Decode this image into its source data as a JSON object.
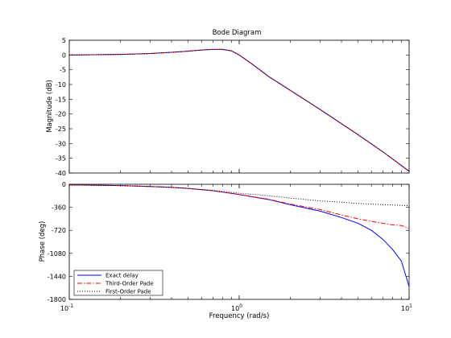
{
  "chart_data": [
    {
      "type": "line",
      "title": "Bode Diagram",
      "xlabel": "",
      "ylabel": "Magnitude (dB)",
      "xscale": "log",
      "xlim": [
        0.1,
        10
      ],
      "ylim": [
        -40,
        5
      ],
      "yticks": [
        5,
        0,
        -5,
        -10,
        -15,
        -20,
        -25,
        -30,
        -35,
        -40
      ],
      "grid": false,
      "series": [
        {
          "name": "Exact delay",
          "color": "#0000ff",
          "dash": "solid",
          "x": [
            0.1,
            0.2,
            0.3,
            0.4,
            0.5,
            0.6,
            0.7,
            0.8,
            0.9,
            1.0,
            1.2,
            1.5,
            2,
            3,
            5,
            7,
            10
          ],
          "y": [
            0.0,
            0.2,
            0.5,
            0.9,
            1.3,
            1.7,
            1.9,
            1.9,
            1.4,
            0.0,
            -3.2,
            -7.4,
            -12.0,
            -18.5,
            -27.0,
            -32.8,
            -39.4
          ]
        },
        {
          "name": "Third-Order Pade",
          "color": "#ff0000",
          "dash": "dashdot",
          "x": [
            0.1,
            0.2,
            0.3,
            0.4,
            0.5,
            0.6,
            0.7,
            0.8,
            0.9,
            1.0,
            1.2,
            1.5,
            2,
            3,
            5,
            7,
            10
          ],
          "y": [
            0.0,
            0.2,
            0.5,
            0.9,
            1.3,
            1.7,
            1.9,
            1.9,
            1.4,
            0.0,
            -3.2,
            -7.4,
            -12.0,
            -18.5,
            -27.0,
            -32.8,
            -39.4
          ]
        },
        {
          "name": "First-Order Pade",
          "color": "#000000",
          "dash": "dotted",
          "x": [
            0.1,
            0.2,
            0.3,
            0.4,
            0.5,
            0.6,
            0.7,
            0.8,
            0.9,
            1.0,
            1.2,
            1.5,
            2,
            3,
            5,
            7,
            10
          ],
          "y": [
            0.0,
            0.2,
            0.5,
            0.9,
            1.3,
            1.7,
            1.9,
            1.9,
            1.4,
            0.0,
            -3.2,
            -7.4,
            -12.0,
            -18.5,
            -27.0,
            -32.8,
            -39.4
          ]
        }
      ]
    },
    {
      "type": "line",
      "title": "",
      "xlabel": "Frequency  (rad/s)",
      "ylabel": "Phase (deg)",
      "xscale": "log",
      "xlim": [
        0.1,
        10
      ],
      "ylim": [
        -1800,
        0
      ],
      "yticks": [
        0,
        -360,
        -720,
        -1080,
        -1440,
        -1800
      ],
      "xticks": [
        {
          "base": "10",
          "exp": "-1",
          "value": 0.1
        },
        {
          "base": "10",
          "exp": "0",
          "value": 1
        },
        {
          "base": "10",
          "exp": "1",
          "value": 10
        }
      ],
      "grid": false,
      "legend": "bottom-left",
      "series": [
        {
          "name": "Exact delay",
          "color": "#0000ff",
          "dash": "solid",
          "x": [
            0.1,
            0.15,
            0.2,
            0.3,
            0.4,
            0.5,
            0.7,
            1.0,
            1.5,
            2,
            3,
            4,
            5,
            6,
            7,
            8,
            9,
            10
          ],
          "y": [
            -10,
            -15,
            -20,
            -35,
            -48,
            -65,
            -100,
            -160,
            -240,
            -320,
            -420,
            -520,
            -610,
            -720,
            -860,
            -1020,
            -1200,
            -1600
          ]
        },
        {
          "name": "Third-Order Pade",
          "color": "#ff0000",
          "dash": "dashdot",
          "x": [
            0.1,
            0.15,
            0.2,
            0.3,
            0.4,
            0.5,
            0.7,
            1.0,
            1.5,
            2,
            3,
            4,
            5,
            6,
            7,
            8,
            9,
            10
          ],
          "y": [
            -10,
            -15,
            -20,
            -35,
            -48,
            -65,
            -100,
            -160,
            -235,
            -310,
            -395,
            -480,
            -540,
            -580,
            -610,
            -635,
            -645,
            -690
          ]
        },
        {
          "name": "First-Order Pade",
          "color": "#000000",
          "dash": "dotted",
          "x": [
            0.1,
            0.15,
            0.2,
            0.3,
            0.4,
            0.5,
            0.7,
            1.0,
            1.5,
            2,
            3,
            4,
            5,
            6,
            7,
            8,
            9,
            10
          ],
          "y": [
            -10,
            -15,
            -20,
            -35,
            -48,
            -65,
            -95,
            -140,
            -180,
            -215,
            -260,
            -280,
            -300,
            -310,
            -318,
            -324,
            -330,
            -335
          ]
        }
      ]
    }
  ]
}
